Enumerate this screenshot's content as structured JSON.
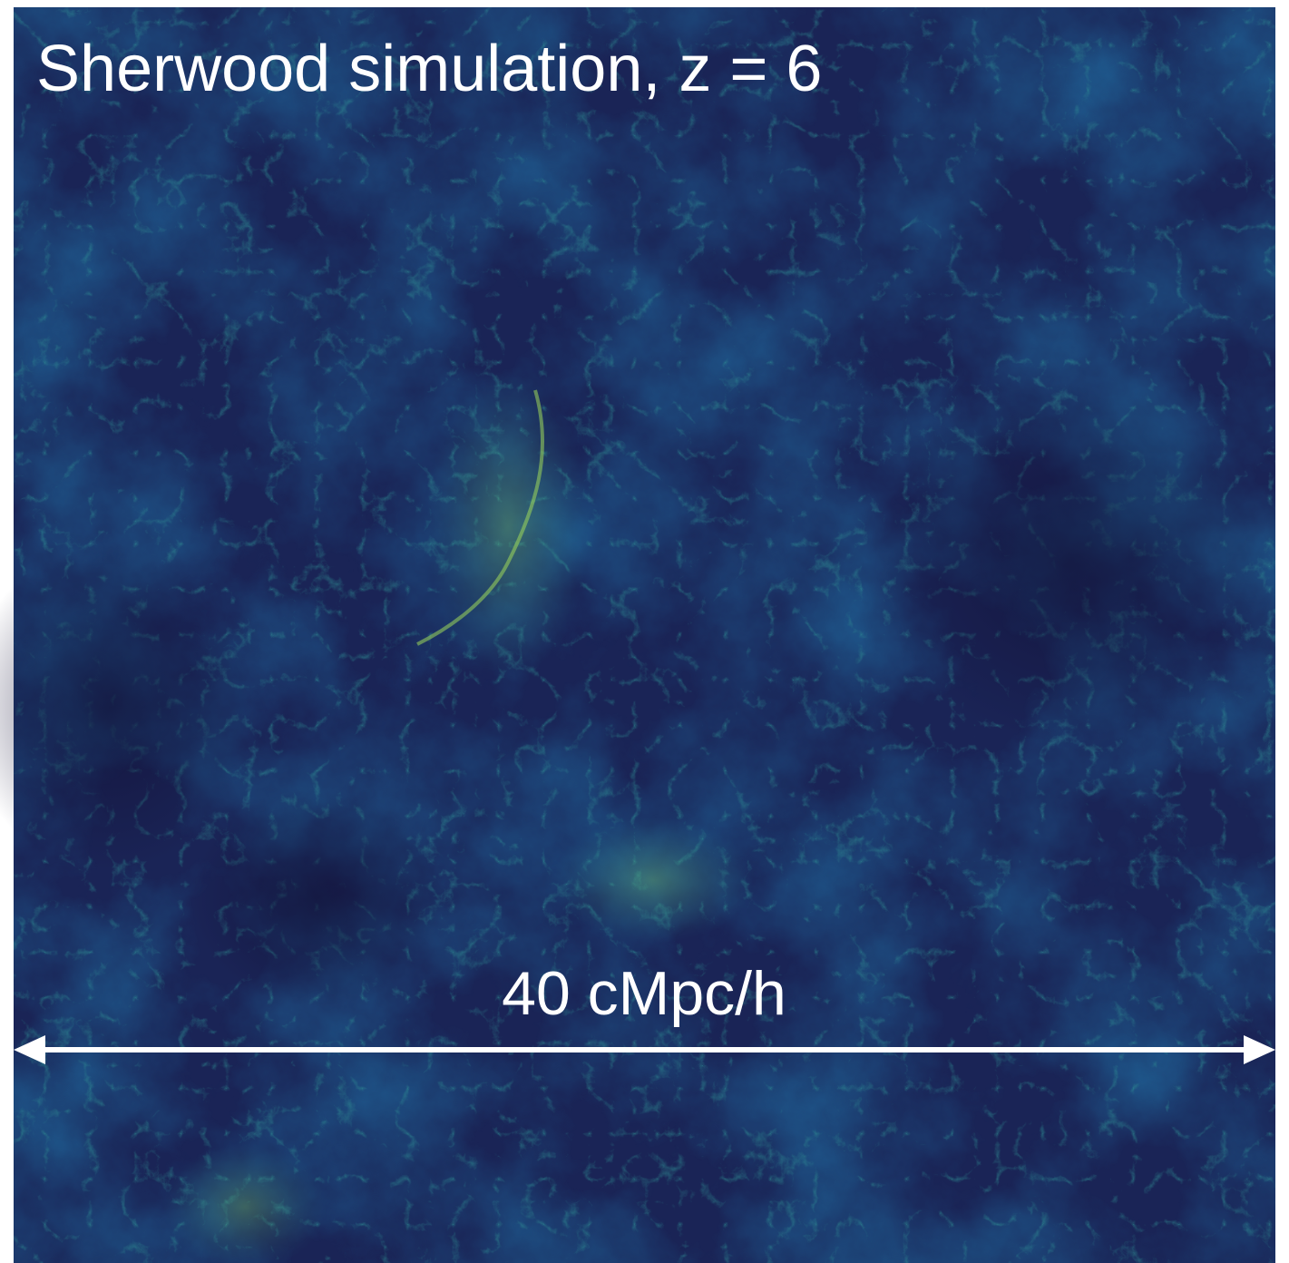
{
  "title": "Sherwood simulation, z = 6",
  "scale_bar": {
    "label": "40 cMpc/h"
  }
}
